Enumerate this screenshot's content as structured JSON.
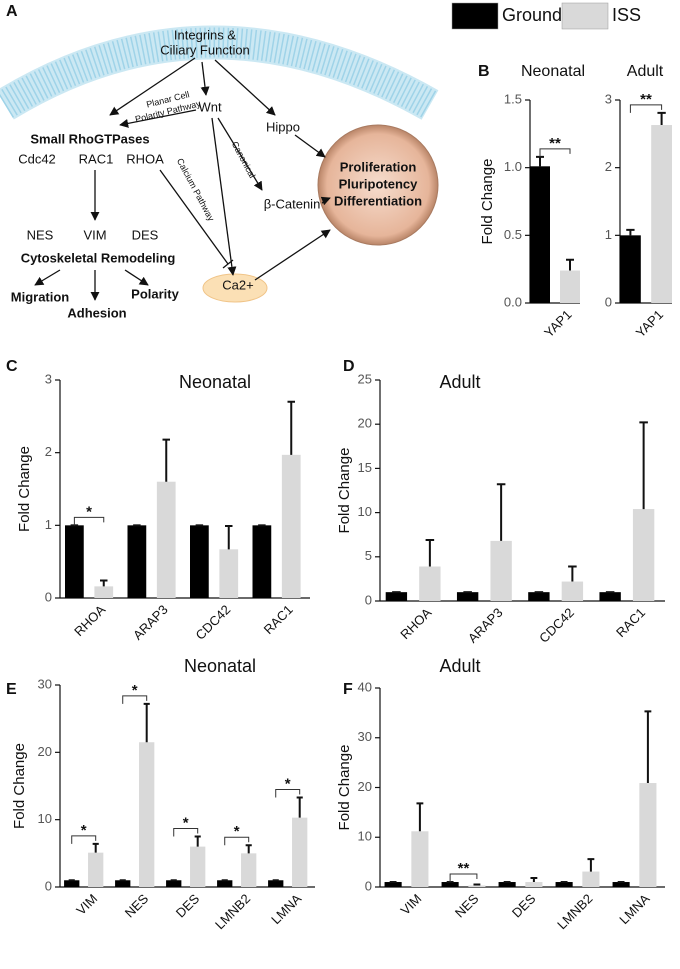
{
  "legend": {
    "items": [
      {
        "name": "Ground",
        "color": "#000000"
      },
      {
        "name": "ISS",
        "color": "#d9d9d9"
      }
    ]
  },
  "diagram": {
    "panel": "A",
    "texts": [
      "Integrins &",
      "Ciliary Function",
      "Wnt",
      "Planar Cell",
      "Polarity Pathway",
      "Hippo",
      "Small RhoGTPases",
      "Cdc42",
      "RAC1",
      "RHOA",
      "Calcium Pathway",
      "Canonical",
      "Proliferation",
      "Pluripotency",
      "Differentiation",
      "β-Catenin",
      "NES",
      "VIM",
      "DES",
      "Cytoskeletal Remodeling",
      "Migration",
      "Adhesion",
      "Polarity",
      "Ca2+"
    ]
  },
  "chart_data": [
    {
      "type": "bar",
      "panel": "B",
      "title": "Neonatal",
      "y_label": "Fold Change",
      "categories": [
        "YAP1"
      ],
      "series": [
        {
          "values": [
            1.01
          ],
          "errors": [
            0.07
          ]
        },
        {
          "values": [
            0.24
          ],
          "errors": [
            0.08
          ]
        }
      ],
      "significance": [
        "**"
      ],
      "ylim": [
        0,
        1.5
      ],
      "yticks": [
        {
          "value": 0,
          "label": "0.0"
        },
        {
          "value": 0.5,
          "label": "0.5"
        },
        {
          "value": 1,
          "label": "1.0"
        },
        {
          "value": 1.5,
          "label": "1.5"
        }
      ]
    },
    {
      "type": "bar",
      "title": "Adult",
      "categories": [
        "YAP1"
      ],
      "series": [
        {
          "values": [
            1.0
          ],
          "errors": [
            0.08
          ]
        },
        {
          "values": [
            2.63
          ],
          "errors": [
            0.18
          ]
        }
      ],
      "significance": [
        "**"
      ],
      "ylim": [
        0,
        3
      ],
      "yticks": [
        0,
        1,
        2,
        3
      ]
    },
    {
      "type": "bar",
      "panel": "C",
      "title": "Neonatal",
      "y_label": "Fold Change",
      "categories": [
        "RHOA",
        "ARAP3",
        "CDC42",
        "RAC1"
      ],
      "series": [
        {
          "values": [
            1,
            1,
            1,
            1
          ],
          "errors": [
            0,
            0,
            0,
            0
          ]
        },
        {
          "values": [
            0.16,
            1.6,
            0.67,
            1.97
          ],
          "errors": [
            0.08,
            0.58,
            0.32,
            0.73
          ]
        }
      ],
      "significance": [
        "*",
        null,
        null,
        null
      ],
      "ylim": [
        0,
        3
      ],
      "yticks": [
        0,
        1,
        2,
        3
      ]
    },
    {
      "type": "bar",
      "panel": "D",
      "title": "Adult",
      "y_label": "Fold Change",
      "categories": [
        "RHOA",
        "ARAP3",
        "CDC42",
        "RAC1"
      ],
      "series": [
        {
          "values": [
            1,
            1,
            1,
            1
          ],
          "errors": [
            0,
            0,
            0,
            0
          ]
        },
        {
          "values": [
            3.9,
            6.8,
            2.2,
            10.4
          ],
          "errors": [
            3.0,
            6.4,
            1.7,
            9.8
          ]
        }
      ],
      "significance": [
        null,
        null,
        null,
        null
      ],
      "ylim": [
        0,
        25
      ],
      "yticks": [
        0,
        5,
        10,
        15,
        20,
        25
      ]
    },
    {
      "type": "bar",
      "panel": "E",
      "title": "Neonatal",
      "y_label": "Fold Change",
      "categories": [
        "VIM",
        "NES",
        "DES",
        "LMNB2",
        "LMNA"
      ],
      "series": [
        {
          "values": [
            1,
            1,
            1,
            1,
            1
          ],
          "errors": [
            0,
            0,
            0,
            0,
            0
          ]
        },
        {
          "values": [
            5.1,
            21.5,
            6.0,
            5.0,
            10.3
          ],
          "errors": [
            1.3,
            5.7,
            1.5,
            1.2,
            3.0
          ]
        }
      ],
      "significance": [
        "*",
        "*",
        "*",
        "*",
        "*"
      ],
      "ylim": [
        0,
        30
      ],
      "yticks": [
        0,
        10,
        20,
        30
      ]
    },
    {
      "type": "bar",
      "panel": "F",
      "title": "Adult",
      "y_label": "Fold Change",
      "categories": [
        "VIM",
        "NES",
        "DES",
        "LMNB2",
        "LMNA"
      ],
      "series": [
        {
          "values": [
            1,
            1,
            1,
            1,
            1
          ],
          "errors": [
            0,
            0,
            0,
            0,
            0
          ]
        },
        {
          "values": [
            11.2,
            0.3,
            1.0,
            3.1,
            20.9
          ],
          "errors": [
            5.6,
            0.2,
            0.8,
            2.5,
            14.4
          ]
        }
      ],
      "significance": [
        null,
        "**",
        null,
        null,
        null
      ],
      "ylim": [
        0,
        40
      ],
      "yticks": [
        0,
        10,
        20,
        30,
        40
      ]
    }
  ]
}
